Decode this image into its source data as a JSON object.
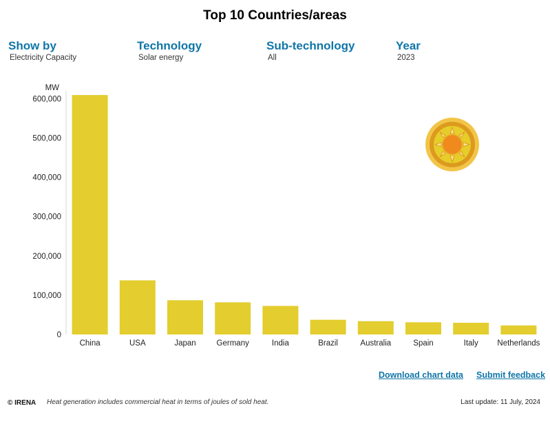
{
  "title": "Top 10 Countries/areas",
  "filters": [
    {
      "label": "Show by",
      "value": "Electricity Capacity"
    },
    {
      "label": "Technology",
      "value": "Solar energy"
    },
    {
      "label": "Sub-technology",
      "value": "All"
    },
    {
      "label": "Year",
      "value": "2023"
    }
  ],
  "links": {
    "download": "Download chart data",
    "feedback": "Submit feedback"
  },
  "footer": {
    "copyright": "© IRENA",
    "note": "Heat generation includes commercial heat in terms of joules of sold heat.",
    "last_update": "Last update: 11 July, 2024"
  },
  "icon": "solar-sun-icon",
  "colors": {
    "bar": "#e3cd2f",
    "accent": "#0f75a8"
  },
  "chart_data": {
    "type": "bar",
    "ylabel": "MW",
    "categories": [
      "China",
      "USA",
      "Japan",
      "Germany",
      "India",
      "Brazil",
      "Australia",
      "Spain",
      "Italy",
      "Netherlands"
    ],
    "values": [
      609349,
      137730,
      87066,
      81739,
      72737,
      37449,
      33776,
      31018,
      29795,
      23013
    ],
    "yticks": [
      0,
      100000,
      200000,
      300000,
      400000,
      500000,
      600000
    ],
    "ytick_labels": [
      "0",
      "100,000",
      "200,000",
      "300,000",
      "400,000",
      "500,000",
      "600,000"
    ],
    "ylim": [
      0,
      620000
    ],
    "grid": false,
    "legend": "none"
  }
}
